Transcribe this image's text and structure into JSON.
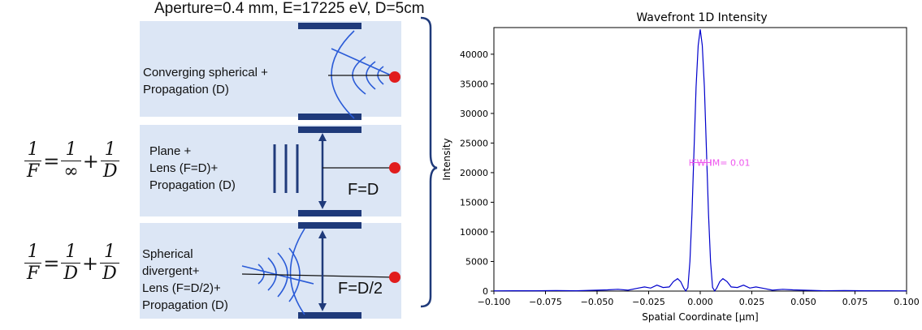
{
  "diagram": {
    "header": "Aperture=0.4 mm, E=17225 eV, D=5cm",
    "panels": [
      {
        "label": "Converging spherical +\nPropagation (D)"
      },
      {
        "label": "Plane +\nLens (F=D)+\nPropagation (D)"
      },
      {
        "label": "Spherical\ndivergent+\nLens (F=D/2)+\nPropagation (D)"
      }
    ],
    "focal_labels": [
      "F=D",
      "F=D/2"
    ],
    "equation1": {
      "lhs_num": "1",
      "lhs_den": "F",
      "t1_num": "1",
      "t1_den": "∞",
      "t2_num": "1",
      "t2_den": "D"
    },
    "equation2": {
      "lhs_num": "1",
      "lhs_den": "F",
      "t1_num": "1",
      "t1_den": "D",
      "t2_num": "1",
      "t2_den": "D"
    },
    "colors": {
      "panel_bg": "#dce6f5",
      "aperture": "#1f3a7a",
      "wave": "#2a5bd7",
      "detector": "#e11d1d"
    }
  },
  "chart_data": {
    "type": "line",
    "title": "Wavefront 1D Intensity",
    "xlabel": "Spatial Coordinate [μm]",
    "ylabel": "Intensity",
    "xlim": [
      -0.1,
      0.1
    ],
    "ylim": [
      0,
      44500
    ],
    "xticks": [
      -0.1,
      -0.075,
      -0.05,
      -0.025,
      0.0,
      0.025,
      0.05,
      0.075,
      0.1
    ],
    "xtick_labels": [
      "−0.100",
      "−0.075",
      "−0.050",
      "−0.025",
      "0.000",
      "0.025",
      "0.050",
      "0.075",
      "0.100"
    ],
    "yticks": [
      0,
      5000,
      10000,
      15000,
      20000,
      25000,
      30000,
      35000,
      40000
    ],
    "ytick_labels": [
      "0",
      "5000",
      "10000",
      "15000",
      "20000",
      "25000",
      "30000",
      "35000",
      "40000"
    ],
    "series": [
      {
        "color": "#0000cc",
        "x": [
          -0.1,
          -0.09,
          -0.08,
          -0.07,
          -0.06,
          -0.05,
          -0.045,
          -0.04,
          -0.035,
          -0.03,
          -0.027,
          -0.024,
          -0.021,
          -0.018,
          -0.015,
          -0.013,
          -0.011,
          -0.0095,
          -0.008,
          -0.007,
          -0.006,
          -0.005,
          -0.004,
          -0.003,
          -0.002,
          -0.001,
          0.0,
          0.001,
          0.002,
          0.003,
          0.004,
          0.005,
          0.006,
          0.007,
          0.008,
          0.0095,
          0.011,
          0.013,
          0.015,
          0.018,
          0.021,
          0.024,
          0.027,
          0.03,
          0.035,
          0.04,
          0.045,
          0.05,
          0.06,
          0.07,
          0.08,
          0.09,
          0.1
        ],
        "y": [
          40,
          60,
          50,
          80,
          60,
          150,
          200,
          300,
          150,
          500,
          700,
          500,
          1000,
          600,
          700,
          1600,
          2100,
          1600,
          500,
          30,
          600,
          5000,
          13000,
          24000,
          34500,
          41500,
          44200,
          41500,
          34500,
          24000,
          13000,
          5000,
          600,
          30,
          500,
          1600,
          2100,
          1600,
          700,
          600,
          1000,
          500,
          700,
          500,
          150,
          300,
          200,
          150,
          60,
          80,
          50,
          60,
          40
        ]
      }
    ],
    "annotation": {
      "text": "FWHM= 0.01",
      "x": 0.0,
      "y": 21700,
      "halfwidth": 0.005,
      "color": "#ee55ee"
    }
  }
}
